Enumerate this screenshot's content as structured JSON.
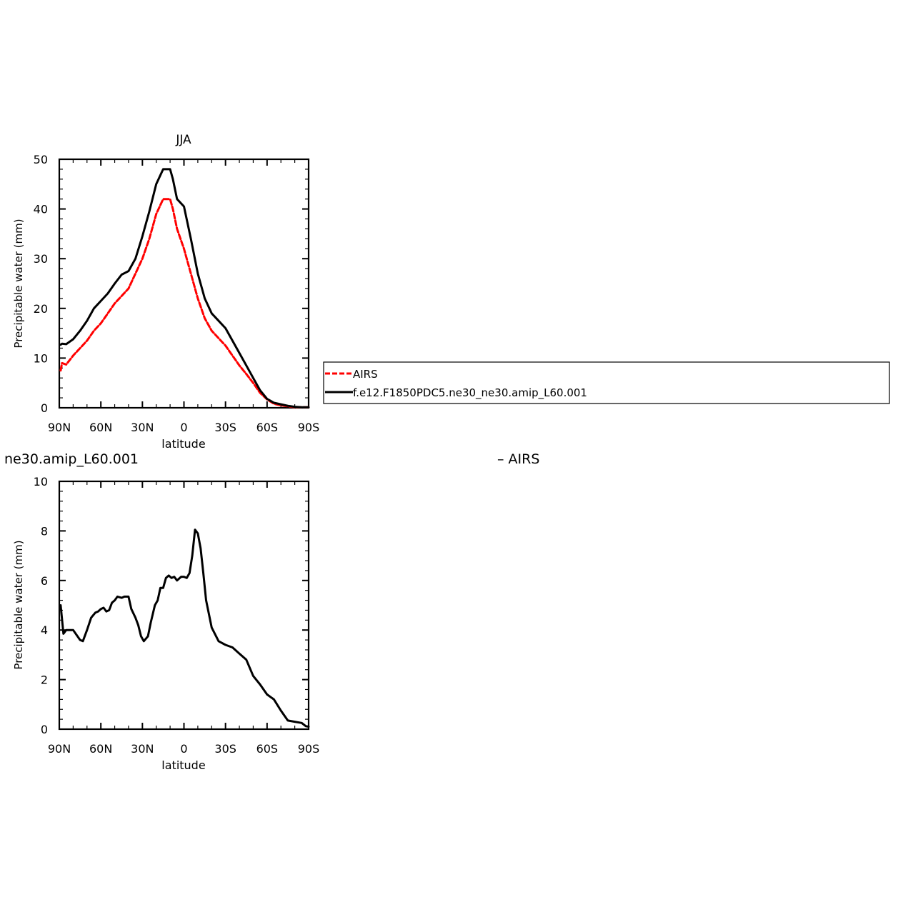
{
  "chart_data": [
    {
      "type": "line",
      "title": "JJA",
      "xlabel": "latitude",
      "ylabel": "Precipitable water (mm)",
      "xlim": [
        90,
        -90
      ],
      "ylim": [
        0,
        50
      ],
      "x_ticks": [
        90,
        60,
        30,
        0,
        -30,
        -60,
        -90
      ],
      "x_tick_labels": [
        "90N",
        "60N",
        "30N",
        "0",
        "30S",
        "60S",
        "90S"
      ],
      "y_ticks": [
        0,
        10,
        20,
        30,
        40,
        50
      ],
      "y_tick_labels": [
        "0",
        "10",
        "20",
        "30",
        "40",
        "50"
      ],
      "grid": false,
      "legend": {
        "placement": "outside-right",
        "entries": [
          "AIRS",
          "f.e12.F1850PDC5.ne30_ne30.amip_L60.001"
        ]
      },
      "series": [
        {
          "name": "AIRS",
          "color": "#ff0000",
          "dash": "dashed",
          "x": [
            89,
            88,
            85,
            80,
            75,
            70,
            65,
            60,
            55,
            50,
            45,
            40,
            35,
            30,
            25,
            20,
            15,
            10,
            8,
            5,
            0,
            -5,
            -10,
            -15,
            -20,
            -25,
            -30,
            -35,
            -40,
            -45,
            -50,
            -55,
            -60,
            -65,
            -70,
            -75,
            -80,
            -85,
            -90
          ],
          "y": [
            7.5,
            9,
            8.7,
            10.5,
            12,
            13.5,
            15.5,
            17,
            19,
            21,
            22.5,
            24,
            27,
            30,
            34,
            39,
            42,
            42,
            40,
            36,
            32,
            27,
            22,
            18,
            15.5,
            14,
            12.5,
            10.5,
            8.5,
            6.8,
            5,
            3,
            1.7,
            0.8,
            0.5,
            0.3,
            0.1,
            0.1,
            0.1
          ]
        },
        {
          "name": "f.e12.F1850PDC5.ne30_ne30.amip_L60.001",
          "color": "#000000",
          "dash": "solid",
          "x": [
            89,
            88,
            85,
            80,
            75,
            70,
            65,
            60,
            55,
            50,
            45,
            40,
            35,
            30,
            25,
            20,
            15,
            10,
            8,
            5,
            0,
            -5,
            -10,
            -15,
            -20,
            -25,
            -30,
            -35,
            -40,
            -45,
            -50,
            -55,
            -60,
            -65,
            -70,
            -75,
            -80,
            -85,
            -90
          ],
          "y": [
            12.7,
            12.9,
            12.8,
            13.8,
            15.5,
            17.5,
            20,
            21.5,
            23,
            25,
            26.8,
            27.5,
            30,
            34.5,
            39.5,
            45,
            48,
            48,
            46,
            42,
            40.5,
            34,
            27,
            22,
            19,
            17.5,
            16,
            13.5,
            11,
            8.5,
            6,
            3.5,
            1.8,
            1,
            0.7,
            0.4,
            0.2,
            0.1,
            0.1
          ]
        }
      ]
    },
    {
      "type": "line",
      "title": "ne30.amip_L60.001",
      "title_right": "– AIRS",
      "xlabel": "latitude",
      "ylabel": "Precipitable water (mm)",
      "xlim": [
        90,
        -90
      ],
      "ylim": [
        0,
        10
      ],
      "x_ticks": [
        90,
        60,
        30,
        0,
        -30,
        -60,
        -90
      ],
      "x_tick_labels": [
        "90N",
        "60N",
        "30N",
        "0",
        "30S",
        "60S",
        "90S"
      ],
      "y_ticks": [
        0,
        2,
        4,
        6,
        8,
        10
      ],
      "y_tick_labels": [
        "0",
        "2",
        "4",
        "6",
        "8",
        "10"
      ],
      "grid": false,
      "series": [
        {
          "color": "#000000",
          "dash": "solid",
          "x": [
            89,
            87,
            85,
            80,
            75,
            73,
            70,
            67,
            64,
            62,
            60,
            58,
            56,
            54,
            52,
            50,
            48,
            45,
            43,
            40,
            38,
            35,
            33,
            31,
            29,
            26,
            24,
            21,
            19,
            17,
            15,
            13,
            11,
            9,
            7,
            5,
            2,
            0,
            -2,
            -4,
            -6,
            -8,
            -10,
            -12,
            -14,
            -16,
            -20,
            -25,
            -30,
            -35,
            -40,
            -45,
            -50,
            -55,
            -60,
            -65,
            -70,
            -75,
            -80,
            -85,
            -88,
            -90
          ],
          "y": [
            5,
            3.85,
            4,
            4,
            3.6,
            3.55,
            4,
            4.5,
            4.7,
            4.75,
            4.85,
            4.9,
            4.75,
            4.8,
            5.1,
            5.2,
            5.35,
            5.3,
            5.35,
            5.35,
            4.85,
            4.5,
            4.2,
            3.75,
            3.55,
            3.75,
            4.3,
            5.0,
            5.2,
            5.7,
            5.7,
            6.1,
            6.2,
            6.1,
            6.15,
            6,
            6.15,
            6.15,
            6.1,
            6.3,
            7.0,
            8.05,
            7.9,
            7.3,
            6.3,
            5.2,
            4.1,
            3.55,
            3.4,
            3.3,
            3.05,
            2.8,
            2.15,
            1.8,
            1.4,
            1.2,
            0.75,
            0.35,
            0.3,
            0.25,
            0.12,
            0.1
          ]
        }
      ]
    }
  ]
}
